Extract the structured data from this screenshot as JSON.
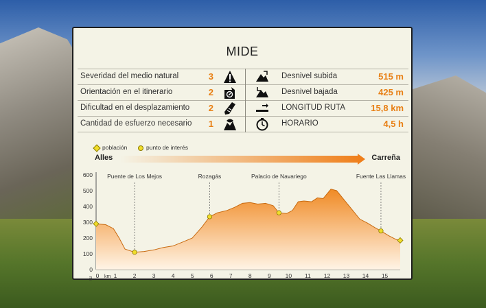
{
  "header": {
    "title": "MIDE"
  },
  "left_rows": [
    {
      "label": "Severidad del medio natural",
      "value": "3",
      "icon": "warning-icon"
    },
    {
      "label": "Orientación en el itinerario",
      "value": "2",
      "icon": "orientation-icon"
    },
    {
      "label": "Dificultad en el desplazamiento",
      "value": "2",
      "icon": "boot-icon"
    },
    {
      "label": "Cantidad de esfuerzo necesario",
      "value": "1",
      "icon": "effort-icon"
    }
  ],
  "right_rows": [
    {
      "label": "Desnivel subida",
      "value": "515 m",
      "icon": "ascent-icon"
    },
    {
      "label": "Desnivel bajada",
      "value": "425 m",
      "icon": "descent-icon"
    },
    {
      "label": "LONGITUD RUTA",
      "value": "15,8 km",
      "icon": "distance-icon"
    },
    {
      "label": "HORARIO",
      "value": "4,5 h",
      "icon": "clock-icon"
    }
  ],
  "legend": {
    "town": "población",
    "poi": "punto de interés"
  },
  "route": {
    "start": "Alles",
    "end": "Carreña"
  },
  "colors": {
    "accent": "#e87f14",
    "profile_fill_top": "#f29a3c",
    "profile_fill_bottom": "#fff2df",
    "marker": "#f1dd2a"
  },
  "chart_data": {
    "type": "area",
    "xlabel": "km",
    "ylabel": "m",
    "x_ticks": [
      0,
      1,
      2,
      3,
      4,
      5,
      6,
      7,
      8,
      9,
      10,
      11,
      12,
      13,
      14,
      15
    ],
    "y_ticks": [
      0,
      100,
      200,
      300,
      400,
      500,
      600
    ],
    "xlim": [
      0,
      15.8
    ],
    "ylim": [
      0,
      600
    ],
    "series": [
      {
        "x": [
          0,
          0.5,
          0.9,
          1.2,
          1.5,
          2.0,
          2.5,
          3.0,
          3.5,
          4.0,
          4.5,
          5.0,
          5.5,
          5.9,
          6.3,
          6.8,
          7.2,
          7.6,
          8.0,
          8.4,
          8.8,
          9.2,
          9.5,
          9.9,
          10.2,
          10.5,
          10.8,
          11.2,
          11.5,
          11.8,
          12.2,
          12.5,
          12.9,
          13.3,
          13.7,
          14.1,
          14.5,
          14.8,
          15.2,
          15.6,
          15.8
        ],
        "y": [
          290,
          285,
          260,
          200,
          130,
          110,
          115,
          125,
          140,
          150,
          175,
          200,
          270,
          335,
          360,
          375,
          395,
          420,
          425,
          415,
          420,
          405,
          360,
          355,
          375,
          430,
          435,
          430,
          455,
          450,
          510,
          500,
          440,
          380,
          320,
          295,
          265,
          245,
          215,
          190,
          185
        ]
      }
    ],
    "annotations": [
      {
        "label": "Puente de Los Mejos",
        "x": 2.0,
        "y": 110
      },
      {
        "label": "Rozagás",
        "x": 5.9,
        "y": 335
      },
      {
        "label": "Palacio de Navariego",
        "x": 9.5,
        "y": 360
      },
      {
        "label": "Fuente Las Llamas",
        "x": 14.8,
        "y": 245
      }
    ],
    "endpoints": [
      {
        "x": 0,
        "y": 290
      },
      {
        "x": 15.8,
        "y": 185
      }
    ]
  }
}
